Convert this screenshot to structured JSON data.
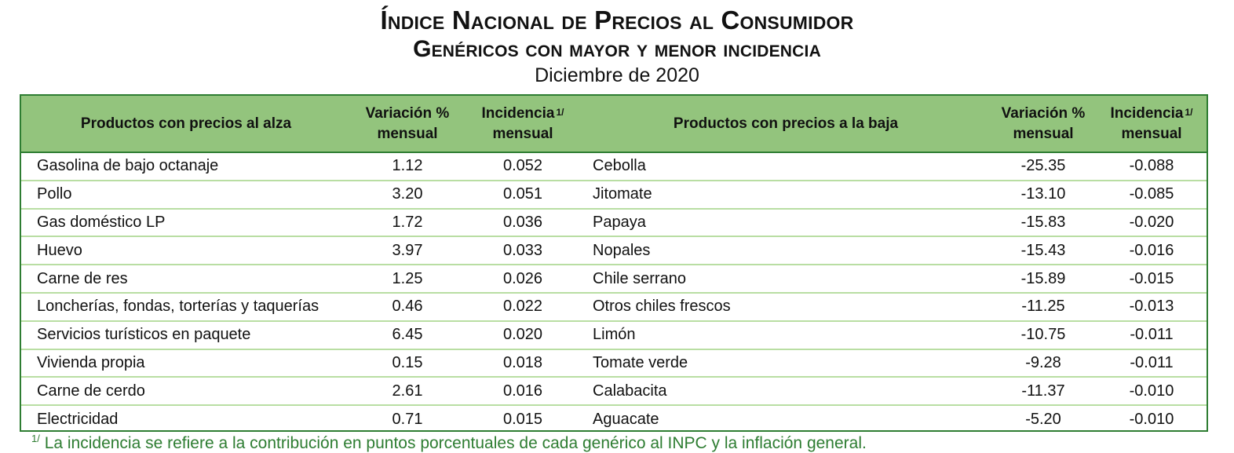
{
  "title": {
    "line1": "Índice Nacional de Precios al Consumidor",
    "line2": "Genéricos con mayor y menor incidencia",
    "line3": "Diciembre de 2020"
  },
  "table": {
    "headers": {
      "up_products": "Productos con precios al alza",
      "up_var_line1": "Variación %",
      "up_var_line2": "mensual",
      "up_inc_line1": "Incidencia",
      "up_inc_sup": "1/",
      "up_inc_line2": "mensual",
      "down_products": "Productos con precios a la baja",
      "down_var_line1": "Variación %",
      "down_var_line2": "mensual",
      "down_inc_line1": "Incidencia",
      "down_inc_sup": "1/",
      "down_inc_line2": "mensual"
    },
    "rows": [
      {
        "up": "Gasolina de bajo octanaje",
        "up_var": "1.12",
        "up_inc": "0.052",
        "down": "Cebolla",
        "down_var": "-25.35",
        "down_inc": "-0.088"
      },
      {
        "up": "Pollo",
        "up_var": "3.20",
        "up_inc": "0.051",
        "down": "Jitomate",
        "down_var": "-13.10",
        "down_inc": "-0.085"
      },
      {
        "up": "Gas doméstico LP",
        "up_var": "1.72",
        "up_inc": "0.036",
        "down": "Papaya",
        "down_var": "-15.83",
        "down_inc": "-0.020"
      },
      {
        "up": "Huevo",
        "up_var": "3.97",
        "up_inc": "0.033",
        "down": "Nopales",
        "down_var": "-15.43",
        "down_inc": "-0.016"
      },
      {
        "up": "Carne de res",
        "up_var": "1.25",
        "up_inc": "0.026",
        "down": "Chile serrano",
        "down_var": "-15.89",
        "down_inc": "-0.015"
      },
      {
        "up": "Loncherías, fondas, torterías y taquerías",
        "up_var": "0.46",
        "up_inc": "0.022",
        "down": "Otros chiles frescos",
        "down_var": "-11.25",
        "down_inc": "-0.013"
      },
      {
        "up": "Servicios turísticos en paquete",
        "up_var": "6.45",
        "up_inc": "0.020",
        "down": "Limón",
        "down_var": "-10.75",
        "down_inc": "-0.011"
      },
      {
        "up": "Vivienda propia",
        "up_var": "0.15",
        "up_inc": "0.018",
        "down": "Tomate verde",
        "down_var": "-9.28",
        "down_inc": "-0.011"
      },
      {
        "up": "Carne de cerdo",
        "up_var": "2.61",
        "up_inc": "0.016",
        "down": "Calabacita",
        "down_var": "-11.37",
        "down_inc": "-0.010"
      },
      {
        "up": "Electricidad",
        "up_var": "0.71",
        "up_inc": "0.015",
        "down": "Aguacate",
        "down_var": "-5.20",
        "down_inc": "-0.010"
      }
    ]
  },
  "footnote": {
    "sup": "1/",
    "text": "La incidencia se refiere a la contribución en puntos porcentuales de cada genérico al INPC y la inflación general."
  },
  "colors": {
    "header_bg": "#93c47d",
    "border": "#2e7d32",
    "row_line": "#b9dea3"
  }
}
